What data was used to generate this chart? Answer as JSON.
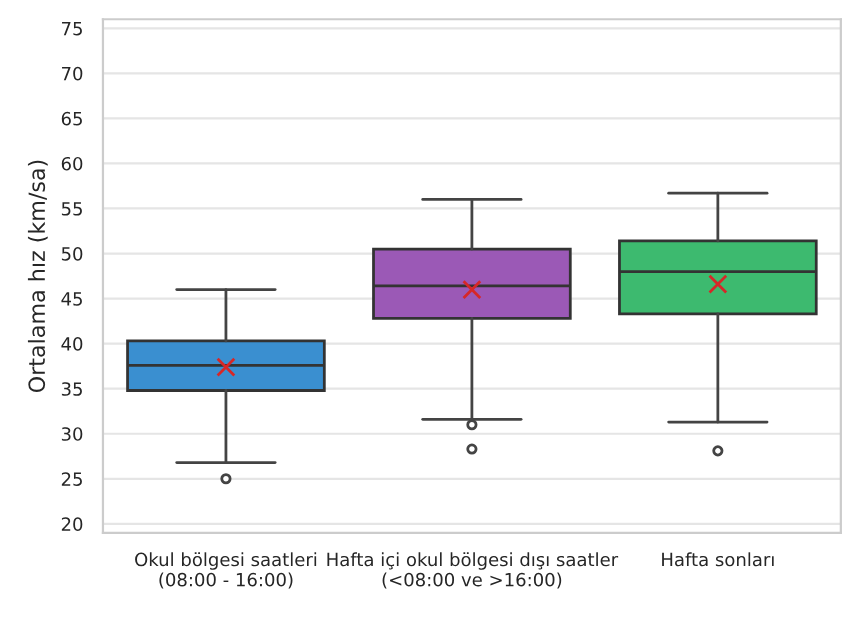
{
  "chart_data": {
    "type": "box",
    "ylabel": "Ortalama hız (km/sa)",
    "categories": [
      "Okul bölgesi saatleri\n(08:00 - 16:00)",
      "Hafta içi okul bölgesi dışı saatler\n(<08:00 ve >16:00)",
      "Hafta sonları"
    ],
    "colors": [
      "#3a8fd0",
      "#9b59b6",
      "#3dba6f"
    ],
    "boxes": [
      {
        "low": 26.8,
        "q1": 34.8,
        "median": 37.6,
        "q3": 40.3,
        "high": 46,
        "mean": 37.4,
        "outliers": [
          25
        ]
      },
      {
        "low": 31.6,
        "q1": 42.8,
        "median": 46.4,
        "q3": 50.5,
        "high": 56,
        "mean": 46,
        "outliers": [
          31,
          28.3
        ]
      },
      {
        "low": 31.3,
        "q1": 43.3,
        "median": 48,
        "q3": 51.4,
        "high": 56.7,
        "mean": 46.6,
        "outliers": [
          28.1
        ]
      }
    ],
    "ylim": [
      19,
      76
    ],
    "yticks": [
      20,
      25,
      30,
      35,
      40,
      45,
      50,
      55,
      60,
      65,
      70,
      75
    ],
    "grid": "y"
  }
}
